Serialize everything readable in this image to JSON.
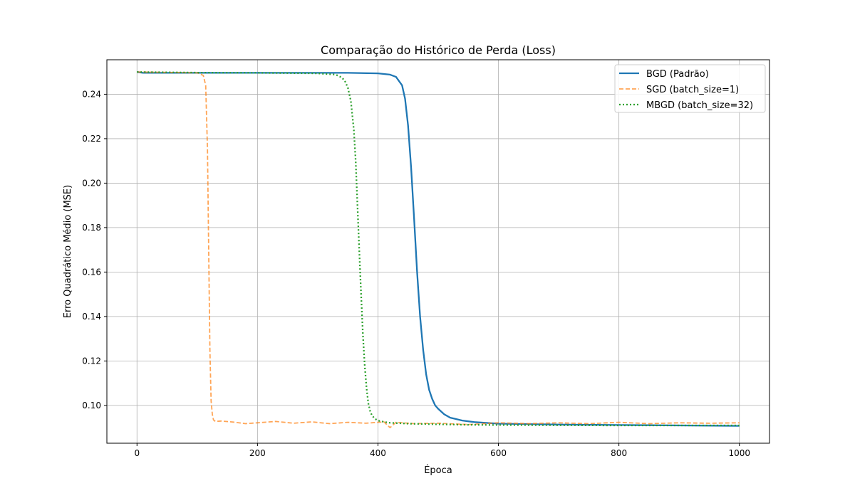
{
  "chart_data": {
    "type": "line",
    "title": "Comparação do Histórico de Perda (Loss)",
    "xlabel": "Época",
    "ylabel": "Erro Quadrático Médio (MSE)",
    "xlim": [
      -50,
      1050
    ],
    "ylim": [
      0.083,
      0.2555
    ],
    "xticks": [
      0,
      200,
      400,
      600,
      800,
      1000
    ],
    "xtick_labels": [
      "0",
      "200",
      "400",
      "600",
      "800",
      "1000"
    ],
    "yticks": [
      0.1,
      0.12,
      0.14,
      0.16,
      0.18,
      0.2,
      0.22,
      0.24
    ],
    "ytick_labels": [
      "0.10",
      "0.12",
      "0.14",
      "0.16",
      "0.18",
      "0.20",
      "0.22",
      "0.24"
    ],
    "grid": true,
    "legend_position": "top-right",
    "series": [
      {
        "name": "BGD (Padrão)",
        "color": "#1f77b4",
        "style": "solid",
        "x": [
          0,
          10,
          100,
          200,
          300,
          350,
          400,
          420,
          430,
          440,
          445,
          450,
          455,
          460,
          465,
          470,
          475,
          480,
          485,
          490,
          495,
          500,
          510,
          520,
          540,
          560,
          600,
          700,
          800,
          900,
          1000
        ],
        "y": [
          0.25,
          0.2496,
          0.2496,
          0.2496,
          0.2496,
          0.2496,
          0.2494,
          0.2488,
          0.2478,
          0.244,
          0.238,
          0.226,
          0.207,
          0.184,
          0.16,
          0.14,
          0.125,
          0.114,
          0.107,
          0.103,
          0.1,
          0.0985,
          0.096,
          0.0945,
          0.0932,
          0.0925,
          0.0918,
          0.0914,
          0.0912,
          0.091,
          0.0908
        ]
      },
      {
        "name": "SGD (batch_size=1)",
        "color": "#ff7f0e",
        "style": "dashed",
        "x": [
          0,
          50,
          100,
          110,
          114,
          117,
          119,
          121,
          123,
          125,
          127,
          130,
          140,
          160,
          180,
          200,
          230,
          260,
          290,
          320,
          350,
          380,
          410,
          420,
          430,
          460,
          500,
          550,
          600,
          650,
          700,
          750,
          800,
          850,
          900,
          950,
          1000
        ],
        "y": [
          0.25,
          0.2498,
          0.2496,
          0.2485,
          0.244,
          0.215,
          0.17,
          0.125,
          0.102,
          0.096,
          0.0935,
          0.0928,
          0.093,
          0.0925,
          0.0918,
          0.0922,
          0.0928,
          0.092,
          0.0926,
          0.0918,
          0.0924,
          0.092,
          0.0926,
          0.09,
          0.0924,
          0.0918,
          0.092,
          0.0914,
          0.0922,
          0.0918,
          0.0922,
          0.0918,
          0.0924,
          0.0918,
          0.0922,
          0.092,
          0.0922
        ]
      },
      {
        "name": "MBGD (batch_size=32)",
        "color": "#2ca02c",
        "style": "dotted",
        "x": [
          0,
          100,
          200,
          300,
          330,
          340,
          345,
          350,
          355,
          360,
          363,
          366,
          369,
          372,
          375,
          378,
          381,
          384,
          387,
          390,
          395,
          400,
          410,
          420,
          450,
          500,
          550,
          600,
          700,
          800,
          900,
          1000
        ],
        "y": [
          0.25,
          0.2497,
          0.2496,
          0.2494,
          0.2488,
          0.2475,
          0.246,
          0.243,
          0.237,
          0.224,
          0.21,
          0.19,
          0.17,
          0.15,
          0.132,
          0.118,
          0.108,
          0.101,
          0.0975,
          0.0955,
          0.094,
          0.0932,
          0.0926,
          0.0922,
          0.0918,
          0.0915,
          0.0913,
          0.0912,
          0.0911,
          0.091,
          0.091,
          0.091
        ]
      }
    ]
  }
}
